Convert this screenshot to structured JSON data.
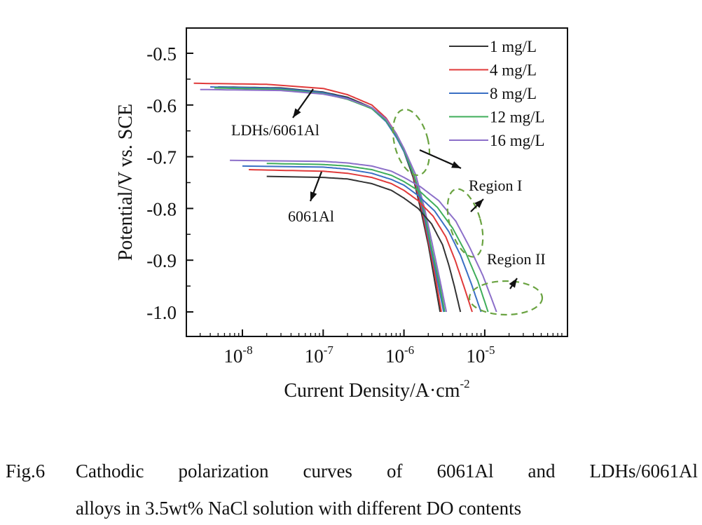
{
  "chart_data": {
    "type": "line",
    "title": "",
    "xlabel": "Current Density/A·cm",
    "xlabel_superscript": "-2",
    "ylabel": "Potential/V vs. SCE",
    "x_scale": "log",
    "xlim": [
      2e-09,
      8e-05
    ],
    "ylim": [
      -1.05,
      -0.455
    ],
    "x_ticks": [
      {
        "value": 1e-08,
        "base": "10",
        "exp": "-8"
      },
      {
        "value": 1e-07,
        "base": "10",
        "exp": "-7"
      },
      {
        "value": 1e-06,
        "base": "10",
        "exp": "-6"
      },
      {
        "value": 1e-05,
        "base": "10",
        "exp": "-5"
      }
    ],
    "y_ticks": [
      -0.5,
      -0.6,
      -0.7,
      -0.8,
      -0.9,
      -1.0
    ],
    "y_tick_labels": [
      "-0.5",
      "-0.6",
      "-0.7",
      "-0.8",
      "-0.9",
      "-1.0"
    ],
    "grid": false,
    "legend_position": "top-right",
    "legend": [
      {
        "name": "1 mg/L",
        "color": "#333333"
      },
      {
        "name": "4 mg/L",
        "color": "#e03a3a"
      },
      {
        "name": "8 mg/L",
        "color": "#3a6fc4"
      },
      {
        "name": "12 mg/L",
        "color": "#3fae5a"
      },
      {
        "name": "16 mg/L",
        "color": "#8c6fc9"
      }
    ],
    "groups": [
      {
        "name": "LDHs/6061Al",
        "series": [
          {
            "name": "1 mg/L",
            "color": "#333333",
            "points": [
              [
                5e-09,
                -0.565
              ],
              [
                3e-08,
                -0.567
              ],
              [
                1e-07,
                -0.575
              ],
              [
                2e-07,
                -0.585
              ],
              [
                4e-07,
                -0.605
              ],
              [
                6e-07,
                -0.63
              ],
              [
                8e-07,
                -0.66
              ],
              [
                1e-06,
                -0.69
              ],
              [
                1.3e-06,
                -0.74
              ],
              [
                1.6e-06,
                -0.8
              ],
              [
                2e-06,
                -0.87
              ],
              [
                2.4e-06,
                -0.94
              ],
              [
                2.8e-06,
                -1.0
              ]
            ]
          },
          {
            "name": "4 mg/L",
            "color": "#e03a3a",
            "points": [
              [
                2.5e-09,
                -0.558
              ],
              [
                2e-08,
                -0.56
              ],
              [
                1e-07,
                -0.568
              ],
              [
                2e-07,
                -0.58
              ],
              [
                4e-07,
                -0.6
              ],
              [
                6e-07,
                -0.625
              ],
              [
                8e-07,
                -0.655
              ],
              [
                1e-06,
                -0.685
              ],
              [
                1.3e-06,
                -0.735
              ],
              [
                1.65e-06,
                -0.8
              ],
              [
                2.05e-06,
                -0.87
              ],
              [
                2.5e-06,
                -0.94
              ],
              [
                2.9e-06,
                -1.0
              ]
            ]
          },
          {
            "name": "8 mg/L",
            "color": "#3a6fc4",
            "points": [
              [
                4e-09,
                -0.565
              ],
              [
                3e-08,
                -0.568
              ],
              [
                1e-07,
                -0.576
              ],
              [
                2e-07,
                -0.587
              ],
              [
                4e-07,
                -0.607
              ],
              [
                6e-07,
                -0.632
              ],
              [
                8e-07,
                -0.662
              ],
              [
                1e-06,
                -0.69
              ],
              [
                1.35e-06,
                -0.74
              ],
              [
                1.7e-06,
                -0.8
              ],
              [
                2.1e-06,
                -0.87
              ],
              [
                2.6e-06,
                -0.94
              ],
              [
                3.1e-06,
                -1.0
              ]
            ]
          },
          {
            "name": "12 mg/L",
            "color": "#3fae5a",
            "points": [
              [
                4.5e-09,
                -0.567
              ],
              [
                3e-08,
                -0.57
              ],
              [
                1e-07,
                -0.578
              ],
              [
                2e-07,
                -0.589
              ],
              [
                4e-07,
                -0.607
              ],
              [
                6e-07,
                -0.63
              ],
              [
                8e-07,
                -0.658
              ],
              [
                1e-06,
                -0.687
              ],
              [
                1.35e-06,
                -0.738
              ],
              [
                1.75e-06,
                -0.8
              ],
              [
                2.15e-06,
                -0.87
              ],
              [
                2.7e-06,
                -0.94
              ],
              [
                3.2e-06,
                -1.0
              ]
            ]
          },
          {
            "name": "16 mg/L",
            "color": "#8c6fc9",
            "points": [
              [
                3e-09,
                -0.57
              ],
              [
                3e-08,
                -0.572
              ],
              [
                1e-07,
                -0.579
              ],
              [
                2e-07,
                -0.588
              ],
              [
                4e-07,
                -0.605
              ],
              [
                6e-07,
                -0.627
              ],
              [
                8e-07,
                -0.655
              ],
              [
                1e-06,
                -0.684
              ],
              [
                1.4e-06,
                -0.735
              ],
              [
                1.8e-06,
                -0.8
              ],
              [
                2.25e-06,
                -0.87
              ],
              [
                2.8e-06,
                -0.94
              ],
              [
                3.35e-06,
                -1.0
              ]
            ]
          }
        ]
      },
      {
        "name": "6061Al",
        "series": [
          {
            "name": "1 mg/L",
            "color": "#333333",
            "points": [
              [
                2e-08,
                -0.738
              ],
              [
                1e-07,
                -0.74
              ],
              [
                2e-07,
                -0.743
              ],
              [
                4e-07,
                -0.752
              ],
              [
                7e-07,
                -0.765
              ],
              [
                1e-06,
                -0.78
              ],
              [
                1.5e-06,
                -0.8
              ],
              [
                2.2e-06,
                -0.83
              ],
              [
                3e-06,
                -0.87
              ],
              [
                3.6e-06,
                -0.91
              ],
              [
                4.2e-06,
                -0.95
              ],
              [
                5e-06,
                -1.0
              ]
            ]
          },
          {
            "name": "4 mg/L",
            "color": "#e03a3a",
            "points": [
              [
                1.2e-08,
                -0.725
              ],
              [
                1e-07,
                -0.728
              ],
              [
                2e-07,
                -0.732
              ],
              [
                4e-07,
                -0.74
              ],
              [
                7e-07,
                -0.752
              ],
              [
                1e-06,
                -0.765
              ],
              [
                1.5e-06,
                -0.785
              ],
              [
                2.3e-06,
                -0.815
              ],
              [
                3.3e-06,
                -0.855
              ],
              [
                4.3e-06,
                -0.9
              ],
              [
                5.5e-06,
                -0.95
              ],
              [
                7e-06,
                -1.0
              ]
            ]
          },
          {
            "name": "8 mg/L",
            "color": "#3a6fc4",
            "points": [
              [
                1e-08,
                -0.718
              ],
              [
                1e-07,
                -0.72
              ],
              [
                2e-07,
                -0.724
              ],
              [
                4e-07,
                -0.732
              ],
              [
                7e-07,
                -0.744
              ],
              [
                1e-06,
                -0.755
              ],
              [
                1.5e-06,
                -0.775
              ],
              [
                2.4e-06,
                -0.805
              ],
              [
                3.6e-06,
                -0.845
              ],
              [
                5e-06,
                -0.89
              ],
              [
                6.8e-06,
                -0.945
              ],
              [
                9e-06,
                -1.0
              ]
            ]
          },
          {
            "name": "12 mg/L",
            "color": "#3fae5a",
            "points": [
              [
                2e-08,
                -0.713
              ],
              [
                1e-07,
                -0.715
              ],
              [
                2e-07,
                -0.718
              ],
              [
                4e-07,
                -0.725
              ],
              [
                7e-07,
                -0.736
              ],
              [
                1e-06,
                -0.748
              ],
              [
                1.6e-06,
                -0.768
              ],
              [
                2.6e-06,
                -0.798
              ],
              [
                4e-06,
                -0.838
              ],
              [
                5.8e-06,
                -0.885
              ],
              [
                8.2e-06,
                -0.94
              ],
              [
                1.1e-05,
                -1.0
              ]
            ]
          },
          {
            "name": "16 mg/L",
            "color": "#8c6fc9",
            "points": [
              [
                7e-09,
                -0.707
              ],
              [
                1e-07,
                -0.709
              ],
              [
                2e-07,
                -0.712
              ],
              [
                4e-07,
                -0.718
              ],
              [
                7e-07,
                -0.728
              ],
              [
                1e-06,
                -0.74
              ],
              [
                1.6e-06,
                -0.758
              ],
              [
                2.7e-06,
                -0.785
              ],
              [
                4.4e-06,
                -0.825
              ],
              [
                6.5e-06,
                -0.875
              ],
              [
                9.5e-06,
                -0.93
              ],
              [
                1.4e-05,
                -1.0
              ]
            ]
          }
        ]
      }
    ],
    "annotations": [
      {
        "text": "LDHs/6061Al",
        "kind": "label"
      },
      {
        "text": "6061Al",
        "kind": "label"
      },
      {
        "text": "Region I",
        "kind": "label"
      },
      {
        "text": "Region II",
        "kind": "label"
      }
    ],
    "highlight_color": "#6aa341"
  },
  "caption": {
    "label": "Fig.6",
    "line1_words": [
      "Cathodic",
      "polarization",
      "curves",
      "of",
      "6061Al",
      "and",
      "LDHs/6061Al"
    ],
    "line2": "alloys in 3.5wt% NaCl solution with different DO contents"
  }
}
